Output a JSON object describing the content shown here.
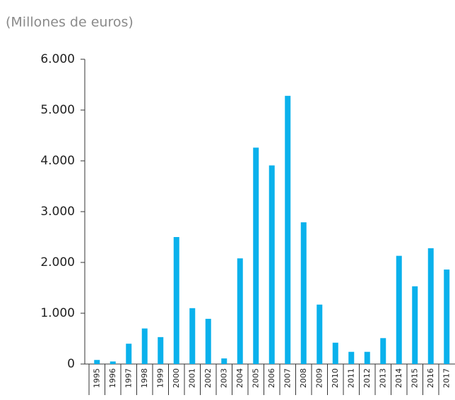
{
  "chart_data": {
    "type": "bar",
    "title": "(Millones de euros)",
    "categories": [
      "1995",
      "1996",
      "1997",
      "1998",
      "1999",
      "2000",
      "2001",
      "2002",
      "2003",
      "2004",
      "2005",
      "2006",
      "2007",
      "2008",
      "2009",
      "2010",
      "2011",
      "2012",
      "2013",
      "2014",
      "2015",
      "2016",
      "2017"
    ],
    "values": [
      80,
      50,
      400,
      700,
      530,
      2500,
      1100,
      890,
      110,
      2080,
      4260,
      3910,
      5280,
      2790,
      1170,
      420,
      240,
      240,
      510,
      2130,
      1530,
      2280,
      1860
    ],
    "color": "#0ab1ec",
    "ylim": [
      0,
      6000
    ],
    "yticks": [
      0,
      {
        "value": 1000,
        "label": "1.000"
      },
      {
        "value": 2000,
        "label": "2.000"
      },
      {
        "value": 3000,
        "label": "3.000"
      },
      {
        "value": 4000,
        "label": "4.000"
      },
      {
        "value": 5000,
        "label": "5.000"
      },
      {
        "value": 6000,
        "label": "6.000"
      }
    ],
    "grid": false
  }
}
